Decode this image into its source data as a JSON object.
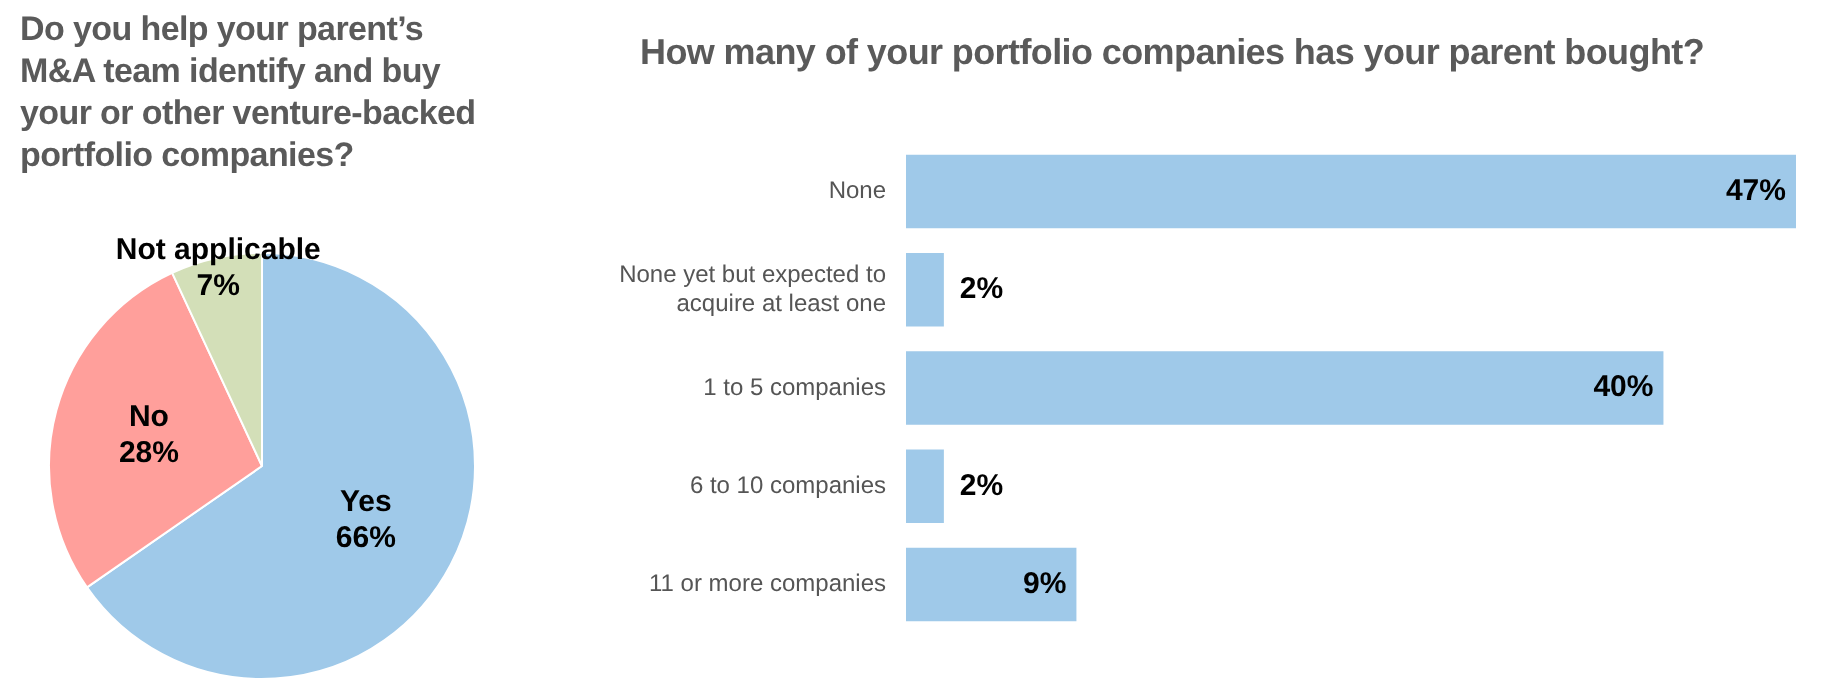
{
  "chart_data": [
    {
      "type": "pie",
      "title": "Do you help your parent’s M&A team identify and buy your or other venture-backed portfolio companies?",
      "categories": [
        "Yes",
        "No",
        "Not applicable"
      ],
      "values": [
        66,
        28,
        7
      ],
      "colors": [
        "#9fc9e9",
        "#ff9f9b",
        "#d3dfb8"
      ],
      "value_labels": [
        "66%",
        "28%",
        "7%"
      ]
    },
    {
      "type": "bar",
      "orientation": "horizontal",
      "title": "How many of your portfolio companies has your parent bought?",
      "categories": [
        "None",
        "None yet but expected to acquire at least one",
        "1 to 5 companies",
        "6 to 10 companies",
        "11 or more companies"
      ],
      "values": [
        47,
        2,
        40,
        2,
        9
      ],
      "color": "#9fc9e9",
      "value_labels": [
        "47%",
        "2%",
        "40%",
        "2%",
        "9%"
      ]
    }
  ]
}
